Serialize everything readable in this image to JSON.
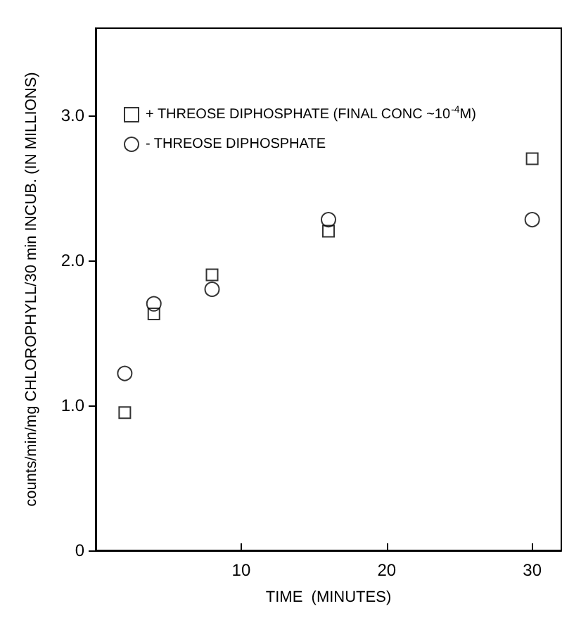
{
  "chart_data": {
    "type": "scatter",
    "xlabel": "TIME  (MINUTES)",
    "ylabel": "counts/min/mg CHLOROPHYLL/30 min INCUB. (IN MILLIONS)",
    "xlim": [
      0,
      32
    ],
    "xticks": [
      10,
      20,
      30
    ],
    "ylim": [
      0,
      3.6
    ],
    "yticks": [
      0,
      {
        "value": 1,
        "label": "1.0"
      },
      {
        "value": 2,
        "label": "2.0"
      },
      {
        "value": 3,
        "label": "3.0"
      }
    ],
    "grid": false,
    "legend": "top left",
    "series": [
      {
        "name": "+ THREOSE DIPHOSPHATE (FINAL CONC ~10$^{-4}$M)",
        "color": "#000000",
        "marker": "square",
        "x": [
          2,
          4,
          8,
          16,
          30
        ],
        "values": [
          0.95,
          1.63,
          1.9,
          2.2,
          2.7
        ]
      },
      {
        "name": "- THREOSE DIPHOSPHATE",
        "color": "#000000",
        "marker": "circle",
        "x": [
          2,
          4,
          8,
          16,
          30
        ],
        "values": [
          1.22,
          1.7,
          1.8,
          2.28,
          2.28
        ]
      }
    ]
  }
}
